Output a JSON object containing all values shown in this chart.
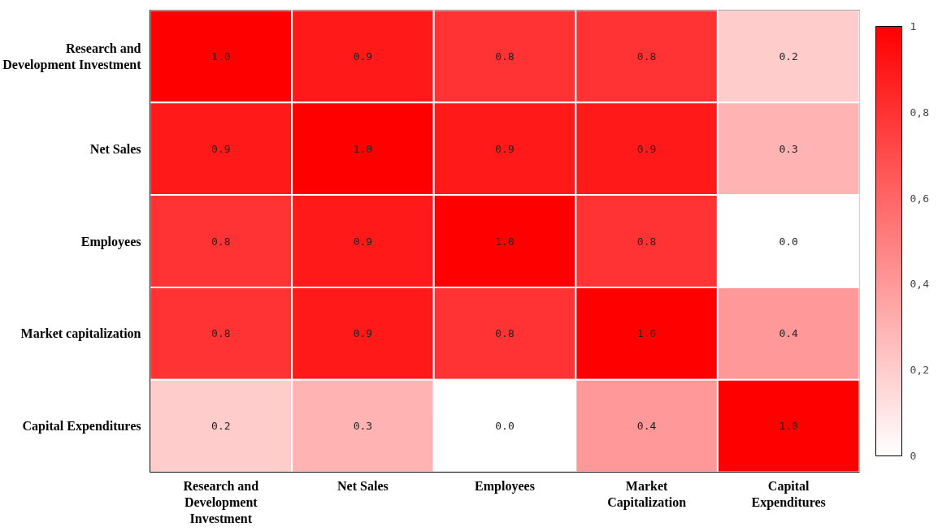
{
  "chart_data": {
    "type": "heatmap",
    "categories": [
      "Research and Development Investment",
      "Net Sales",
      "Employees",
      "Market Capitalization",
      "Capital Expenditures"
    ],
    "y_categories": [
      "Research and Development Investment",
      "Net Sales",
      "Employees",
      "Market capitalization",
      "Capital Expenditures"
    ],
    "cells": [
      [
        1.0,
        0.9,
        0.8,
        0.8,
        0.2
      ],
      [
        0.9,
        1.0,
        0.9,
        0.9,
        0.3
      ],
      [
        0.8,
        0.9,
        1.0,
        0.8,
        0.0
      ],
      [
        0.8,
        0.9,
        0.8,
        1.0,
        0.4
      ],
      [
        0.2,
        0.3,
        0.0,
        0.4,
        1.0
      ]
    ],
    "cell_labels": [
      [
        "1.0",
        "0.9",
        "0.8",
        "0.8",
        "0.2"
      ],
      [
        "0.9",
        "1.0",
        "0.9",
        "0.9",
        "0.3"
      ],
      [
        "0.8",
        "0.9",
        "1.0",
        "0.8",
        "0.0"
      ],
      [
        "0.8",
        "0.9",
        "0.8",
        "1.0",
        "0.4"
      ],
      [
        "0.2",
        "0.3",
        "0.0",
        "0.4",
        "1.0"
      ]
    ],
    "clim": [
      0,
      1
    ],
    "cticks": [
      0,
      {
        "value": 0.2,
        "label": "0,2"
      },
      {
        "value": 0.4,
        "label": "0,4"
      },
      {
        "value": 0.6,
        "label": "0,6"
      },
      {
        "value": 0.8,
        "label": "0,8"
      },
      1
    ]
  }
}
